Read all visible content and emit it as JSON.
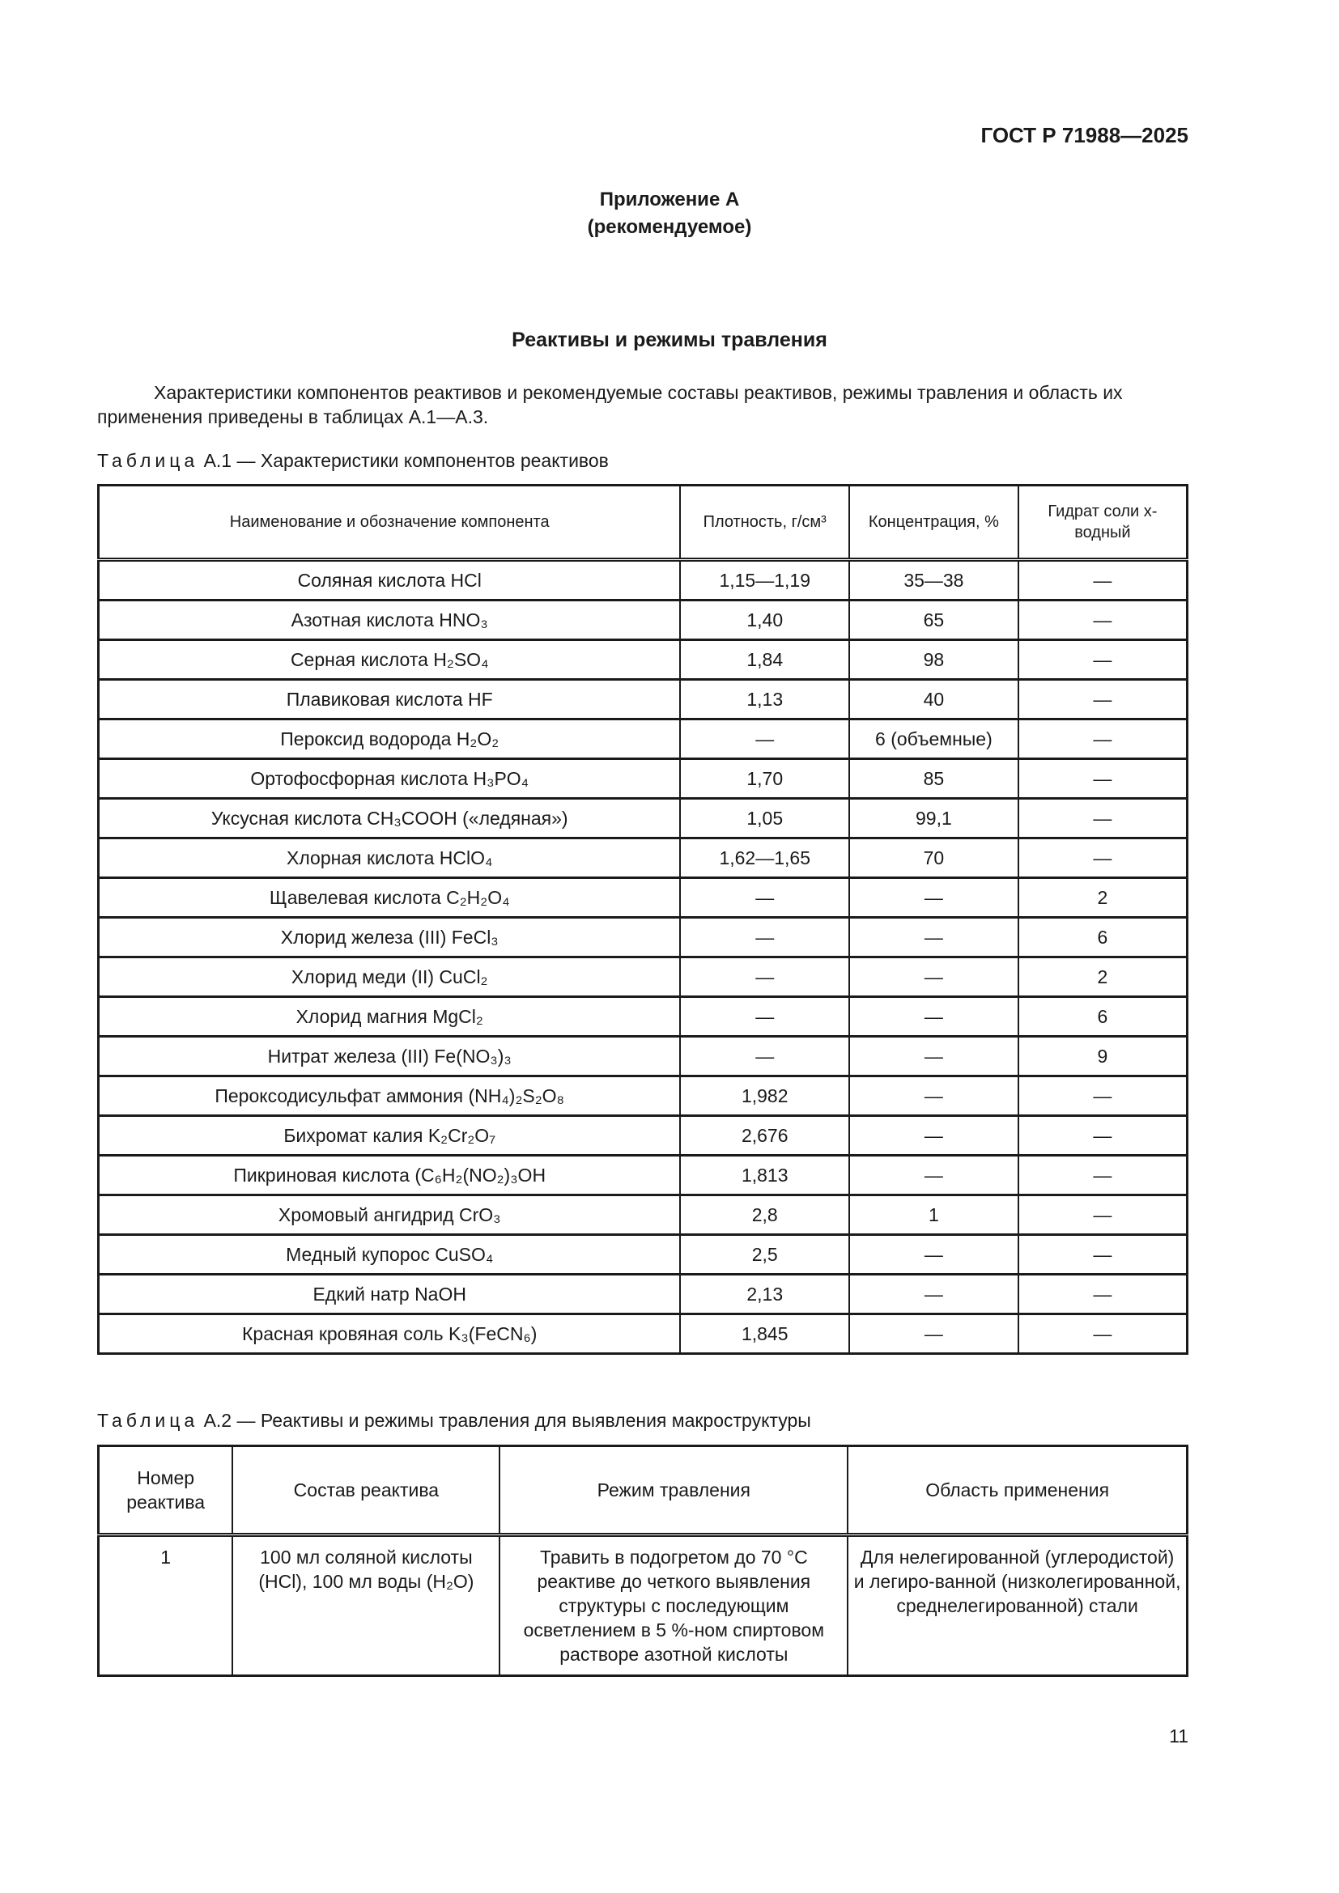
{
  "header": {
    "doc_code": "ГОСТ Р 71988—2025"
  },
  "appendix": {
    "title": "Приложение А",
    "subtitle": "(рекомендуемое)"
  },
  "section_title": "Реактивы и режимы травления",
  "intro": "Характеристики компонентов реактивов и рекомендуемые составы реактивов, режимы травления и область их применения приведены в таблицах А.1—А.3.",
  "table1": {
    "caption_label": "Таблица",
    "caption_text": "А.1 — Характеристики компонентов реактивов",
    "columns": [
      "Наименование и обозначение компонента",
      "Плотность, г/см³",
      "Концентрация, %",
      "Гидрат соли x-водный"
    ],
    "rows": [
      [
        "Соляная кислота HCl",
        "1,15—1,19",
        "35—38",
        "—"
      ],
      [
        "Азотная кислота HNO₃",
        "1,40",
        "65",
        "—"
      ],
      [
        "Серная кислота H₂SO₄",
        "1,84",
        "98",
        "—"
      ],
      [
        "Плавиковая кислота HF",
        "1,13",
        "40",
        "—"
      ],
      [
        "Пероксид водорода H₂O₂",
        "—",
        "6 (объемные)",
        "—"
      ],
      [
        "Ортофосфорная кислота H₃PO₄",
        "1,70",
        "85",
        "—"
      ],
      [
        "Уксусная кислота CH₃COOH («ледяная»)",
        "1,05",
        "99,1",
        "—"
      ],
      [
        "Хлорная кислота HClO₄",
        "1,62—1,65",
        "70",
        "—"
      ],
      [
        "Щавелевая кислота C₂H₂O₄",
        "—",
        "—",
        "2"
      ],
      [
        "Хлорид железа (III) FeCl₃",
        "—",
        "—",
        "6"
      ],
      [
        "Хлорид меди (II) CuCl₂",
        "—",
        "—",
        "2"
      ],
      [
        "Хлорид магния MgCl₂",
        "—",
        "—",
        "6"
      ],
      [
        "Нитрат железа (III) Fe(NO₃)₃",
        "—",
        "—",
        "9"
      ],
      [
        "Пероксодисульфат аммония (NH₄)₂S₂O₈",
        "1,982",
        "—",
        "—"
      ],
      [
        "Бихромат калия K₂Cr₂O₇",
        "2,676",
        "—",
        "—"
      ],
      [
        "Пикриновая кислота (C₆H₂(NO₂)₃OH",
        "1,813",
        "—",
        "—"
      ],
      [
        "Хромовый ангидрид CrO₃",
        "2,8",
        "1",
        "—"
      ],
      [
        "Медный купорос CuSO₄",
        "2,5",
        "—",
        "—"
      ],
      [
        "Едкий натр NaOH",
        "2,13",
        "—",
        "—"
      ],
      [
        "Красная кровяная соль K₃(FeCN₆)",
        "1,845",
        "—",
        "—"
      ]
    ]
  },
  "table2": {
    "caption_label": "Таблица",
    "caption_text": "А.2 — Реактивы и режимы травления для выявления макроструктуры",
    "columns": [
      "Номер реактива",
      "Состав реактива",
      "Режим травления",
      "Область применения"
    ],
    "rows": [
      [
        "1",
        "100 мл соляной кислоты (HCl), 100 мл воды (H₂O)",
        "Травить в подогретом до 70 °C реактиве до четкого выявления структуры с последующим осветлением в 5 %-ном спиртовом растворе азотной кислоты",
        "Для нелегированной (углеродистой) и легиро-ванной (низколегированной, среднелегированной) стали"
      ]
    ]
  },
  "page_number": "11"
}
